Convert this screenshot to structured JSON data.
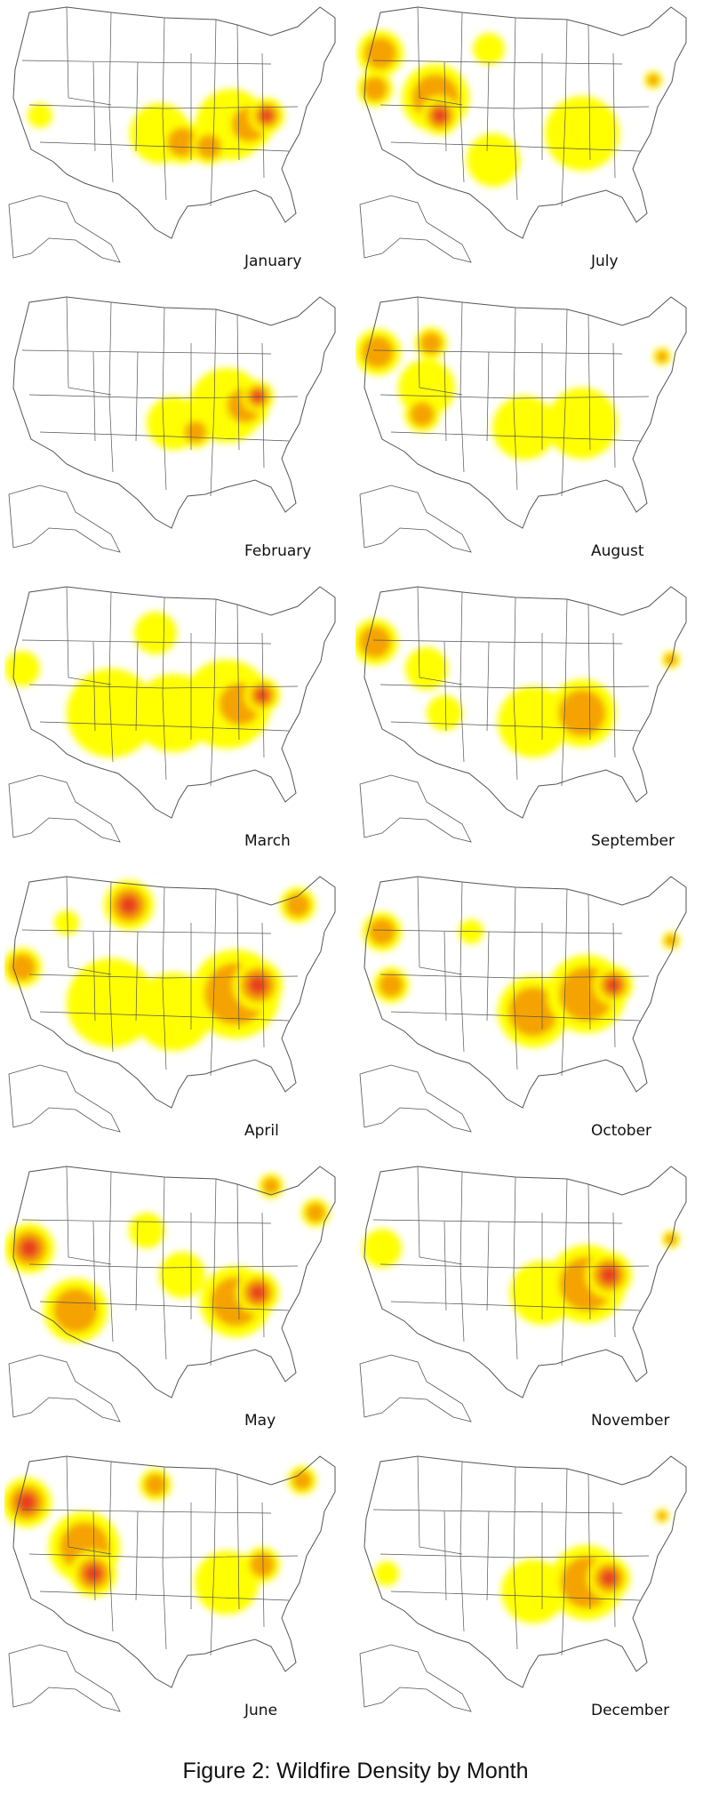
{
  "caption": "Figure 2: Wildfire Density by Month",
  "legend_colors": {
    "low": "#ffff00",
    "medium": "#f5a300",
    "high": "#e8401c"
  },
  "map_outline_color": "#555555",
  "months": [
    {
      "label": "January"
    },
    {
      "label": "July"
    },
    {
      "label": "February"
    },
    {
      "label": "August"
    },
    {
      "label": "March"
    },
    {
      "label": "September"
    },
    {
      "label": "April"
    },
    {
      "label": "October"
    },
    {
      "label": "May"
    },
    {
      "label": "November"
    },
    {
      "label": "June"
    },
    {
      "label": "December"
    }
  ]
}
